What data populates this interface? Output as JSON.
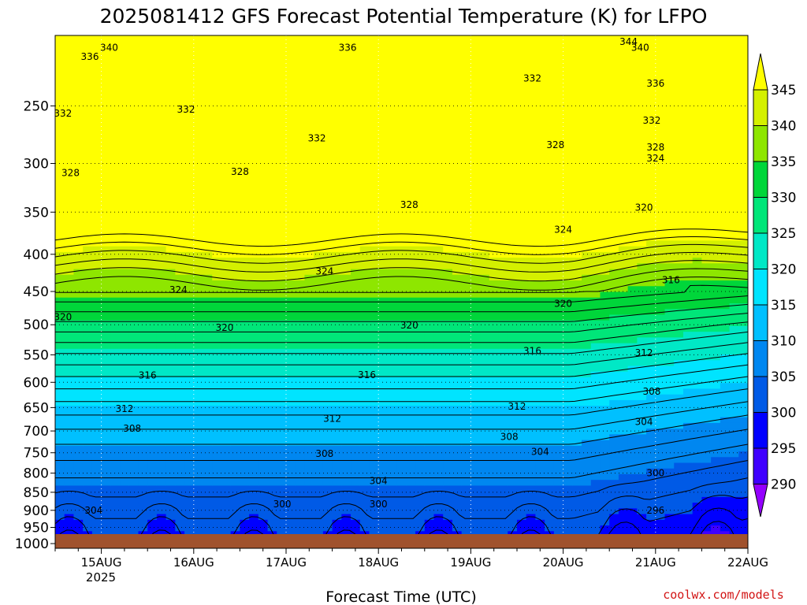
{
  "chart_data": {
    "type": "heatmap",
    "title": "2025081412 GFS Forecast Potential Temperature (K) for LFPO",
    "xlabel": "Forecast Time (UTC)",
    "credit": "coolwx.com/models",
    "year_label": "2025",
    "x_range": [
      "2025-08-14T12:00",
      "2025-08-22T00:00"
    ],
    "x_ticks": [
      {
        "date": "2025-08-15",
        "label": "15AUG"
      },
      {
        "date": "2025-08-16",
        "label": "16AUG"
      },
      {
        "date": "2025-08-17",
        "label": "17AUG"
      },
      {
        "date": "2025-08-18",
        "label": "18AUG"
      },
      {
        "date": "2025-08-19",
        "label": "19AUG"
      },
      {
        "date": "2025-08-20",
        "label": "20AUG"
      },
      {
        "date": "2025-08-21",
        "label": "21AUG"
      },
      {
        "date": "2025-08-22",
        "label": "22AUG"
      }
    ],
    "y_axis": {
      "scale": "log",
      "inverted": true,
      "range": [
        1015,
        200
      ],
      "ticks": [
        250,
        300,
        350,
        400,
        450,
        500,
        550,
        600,
        650,
        700,
        750,
        800,
        850,
        900,
        950,
        1000
      ]
    },
    "grid": true,
    "colorbar": {
      "placement": "right",
      "ticks": [
        345,
        340,
        335,
        330,
        325,
        320,
        315,
        310,
        305,
        300,
        295,
        290
      ],
      "bands": [
        {
          "value": 347.5,
          "color": "#ffff00"
        },
        {
          "value": 342.5,
          "color": "#d4f000"
        },
        {
          "value": 337.5,
          "color": "#8ee600"
        },
        {
          "value": 332.5,
          "color": "#00d63a"
        },
        {
          "value": 327.5,
          "color": "#00e679"
        },
        {
          "value": 322.5,
          "color": "#00e8c6"
        },
        {
          "value": 317.5,
          "color": "#00e4ff"
        },
        {
          "value": 312.5,
          "color": "#00c0ff"
        },
        {
          "value": 307.5,
          "color": "#0087f0"
        },
        {
          "value": 302.5,
          "color": "#005ae6"
        },
        {
          "value": 297.5,
          "color": "#0000ff"
        },
        {
          "value": 292.5,
          "color": "#3f00ff"
        },
        {
          "value": 287.5,
          "color": "#9400ff"
        }
      ]
    },
    "ground_color": "#a0522d",
    "contour_labels": [
      {
        "label": "340",
        "date": "2025-08-15T02:00",
        "p": 208
      },
      {
        "label": "336",
        "date": "2025-08-14T21:00",
        "p": 214
      },
      {
        "label": "336",
        "date": "2025-08-17T16:00",
        "p": 208
      },
      {
        "label": "344",
        "date": "2025-08-20T17:00",
        "p": 204
      },
      {
        "label": "340",
        "date": "2025-08-20T20:00",
        "p": 208
      },
      {
        "label": "336",
        "date": "2025-08-21T00:00",
        "p": 233
      },
      {
        "label": "332",
        "date": "2025-08-14T14:00",
        "p": 256
      },
      {
        "label": "332",
        "date": "2025-08-15T22:00",
        "p": 253
      },
      {
        "label": "332",
        "date": "2025-08-17T08:00",
        "p": 277
      },
      {
        "label": "332",
        "date": "2025-08-19T16:00",
        "p": 229
      },
      {
        "label": "332",
        "date": "2025-08-20T23:00",
        "p": 262
      },
      {
        "label": "328",
        "date": "2025-08-14T16:00",
        "p": 309
      },
      {
        "label": "328",
        "date": "2025-08-16T12:00",
        "p": 308
      },
      {
        "label": "328",
        "date": "2025-08-18T08:00",
        "p": 342
      },
      {
        "label": "328",
        "date": "2025-08-19T22:00",
        "p": 283
      },
      {
        "label": "328",
        "date": "2025-08-21T00:00",
        "p": 285
      },
      {
        "label": "324",
        "date": "2025-08-21T00:00",
        "p": 295
      },
      {
        "label": "324",
        "date": "2025-08-20T00:00",
        "p": 370
      },
      {
        "label": "324",
        "date": "2025-08-17T10:00",
        "p": 422
      },
      {
        "label": "324",
        "date": "2025-08-15T20:00",
        "p": 448
      },
      {
        "label": "320",
        "date": "2025-08-20T21:00",
        "p": 345
      },
      {
        "label": "320",
        "date": "2025-08-20T00:00",
        "p": 468
      },
      {
        "label": "320",
        "date": "2025-08-14T14:00",
        "p": 488
      },
      {
        "label": "320",
        "date": "2025-08-16T08:00",
        "p": 505
      },
      {
        "label": "320",
        "date": "2025-08-18T08:00",
        "p": 501
      },
      {
        "label": "316",
        "date": "2025-08-21T04:00",
        "p": 434
      },
      {
        "label": "316",
        "date": "2025-08-19T16:00",
        "p": 543
      },
      {
        "label": "316",
        "date": "2025-08-15T12:00",
        "p": 587
      },
      {
        "label": "316",
        "date": "2025-08-17T21:00",
        "p": 586
      },
      {
        "label": "312",
        "date": "2025-08-15T06:00",
        "p": 653
      },
      {
        "label": "312",
        "date": "2025-08-17T12:00",
        "p": 673
      },
      {
        "label": "312",
        "date": "2025-08-19T12:00",
        "p": 648
      },
      {
        "label": "312",
        "date": "2025-08-20T21:00",
        "p": 547
      },
      {
        "label": "308",
        "date": "2025-08-15T08:00",
        "p": 695
      },
      {
        "label": "308",
        "date": "2025-08-17T10:00",
        "p": 752
      },
      {
        "label": "308",
        "date": "2025-08-19T10:00",
        "p": 713
      },
      {
        "label": "308",
        "date": "2025-08-20T23:00",
        "p": 618
      },
      {
        "label": "304",
        "date": "2025-08-20T21:00",
        "p": 680
      },
      {
        "label": "304",
        "date": "2025-08-19T18:00",
        "p": 748
      },
      {
        "label": "304",
        "date": "2025-08-18T00:00",
        "p": 820
      },
      {
        "label": "304",
        "date": "2025-08-14T22:00",
        "p": 900
      },
      {
        "label": "300",
        "date": "2025-08-16T23:00",
        "p": 883
      },
      {
        "label": "300",
        "date": "2025-08-18T00:00",
        "p": 883
      },
      {
        "label": "300",
        "date": "2025-08-21T00:00",
        "p": 800
      },
      {
        "label": "296",
        "date": "2025-08-21T00:00",
        "p": 900
      }
    ]
  }
}
